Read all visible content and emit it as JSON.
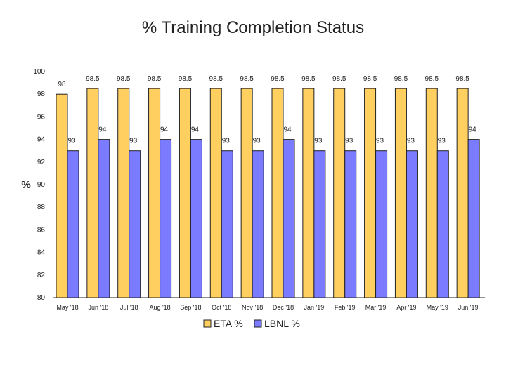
{
  "chart_data": {
    "type": "bar",
    "title": "% Training Completion Status",
    "ylabel": "%",
    "xlabel": "",
    "ylim": [
      80,
      100
    ],
    "yticks": [
      80,
      82,
      84,
      86,
      88,
      90,
      92,
      94,
      96,
      98,
      100
    ],
    "grid": false,
    "legend_position": "bottom",
    "categories": [
      "May '18",
      "Jun '18",
      "Jul '18",
      "Aug '18",
      "Sep '18",
      "Oct '18",
      "Nov '18",
      "Dec '18",
      "Jan '19",
      "Feb '19",
      "Mar '19",
      "Apr '19",
      "May '19",
      "Jun '19"
    ],
    "series": [
      {
        "name": "ETA %",
        "color": "#FFD060",
        "values": [
          98,
          98.5,
          98.5,
          98.5,
          98.5,
          98.5,
          98.5,
          98.5,
          98.5,
          98.5,
          98.5,
          98.5,
          98.5,
          98.5
        ]
      },
      {
        "name": "LBNL %",
        "color": "#7B7BFF",
        "values": [
          93,
          94,
          93,
          94,
          94,
          93,
          93,
          94,
          93,
          93,
          93,
          93,
          93,
          94
        ]
      }
    ]
  }
}
